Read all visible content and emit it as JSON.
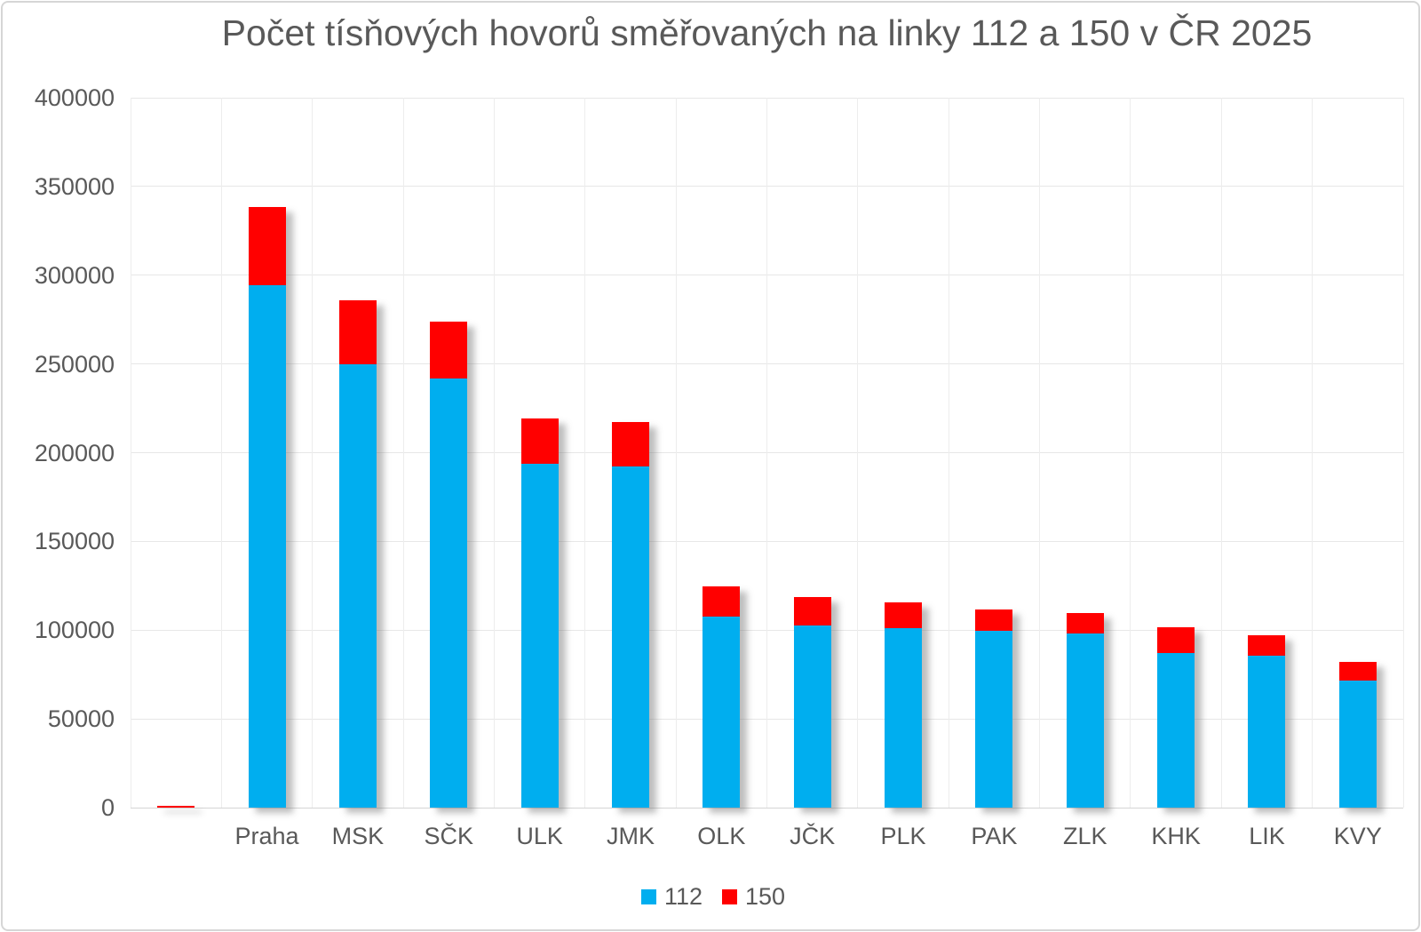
{
  "window": {
    "background": "#ffffff",
    "border_color": "#d6d6d6"
  },
  "chart_data": {
    "type": "bar",
    "stacked": true,
    "title": "Počet tísňových hovorů směřovaných na linky 112 a 150 v ČR 2025",
    "categories": [
      "",
      "Praha",
      "MSK",
      "SČK",
      "ULK",
      "JMK",
      "OLK",
      "JČK",
      "PLK",
      "PAK",
      "ZLK",
      "KHK",
      "LIK",
      "KVY"
    ],
    "series": [
      {
        "name": "112",
        "color": "#00AEEF",
        "values": [
          0,
          294500,
          250000,
          242000,
          193500,
          192000,
          107500,
          102500,
          101000,
          99500,
          98000,
          87000,
          85500,
          71500
        ]
      },
      {
        "name": "150",
        "color": "#FF0000",
        "values": [
          1200,
          44000,
          36000,
          32000,
          25800,
          25500,
          17000,
          16000,
          14500,
          12000,
          11500,
          14500,
          11500,
          10500
        ]
      }
    ],
    "xlabel": "",
    "ylabel": "",
    "ylim": [
      0,
      400000
    ],
    "ytick_step": 50000,
    "yticks": [
      "0",
      "50000",
      "100000",
      "150000",
      "200000",
      "250000",
      "300000",
      "350000",
      "400000"
    ],
    "grid": true,
    "legend_position": "bottom",
    "legend_entries": [
      "112",
      "150"
    ],
    "colors": {
      "text": "#595959",
      "gridline": "#e7e7e7",
      "axis_line": "#d5d5d5"
    }
  }
}
